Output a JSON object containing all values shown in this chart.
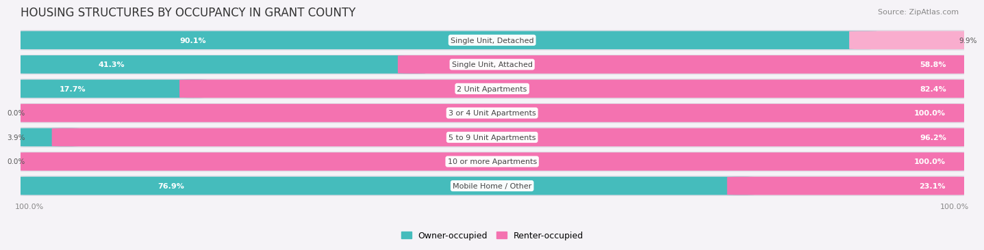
{
  "title": "HOUSING STRUCTURES BY OCCUPANCY IN GRANT COUNTY",
  "source": "Source: ZipAtlas.com",
  "categories": [
    "Single Unit, Detached",
    "Single Unit, Attached",
    "2 Unit Apartments",
    "3 or 4 Unit Apartments",
    "5 to 9 Unit Apartments",
    "10 or more Apartments",
    "Mobile Home / Other"
  ],
  "owner_pct": [
    90.1,
    41.3,
    17.7,
    0.0,
    3.9,
    0.0,
    76.9
  ],
  "renter_pct": [
    9.9,
    58.8,
    82.4,
    100.0,
    96.2,
    100.0,
    23.1
  ],
  "owner_color": "#45BCBC",
  "renter_color": "#F472B0",
  "renter_color_light": "#F9ADCE",
  "bg_row_color": "#ECEAF0",
  "page_bg_color": "#F5F3F7",
  "bar_bg_color": "#E0DEE6",
  "title_fontsize": 12,
  "label_fontsize": 8.0,
  "axis_label_fontsize": 8,
  "legend_fontsize": 9,
  "source_fontsize": 8,
  "xlim_left": -0.01,
  "xlim_right": 1.01
}
